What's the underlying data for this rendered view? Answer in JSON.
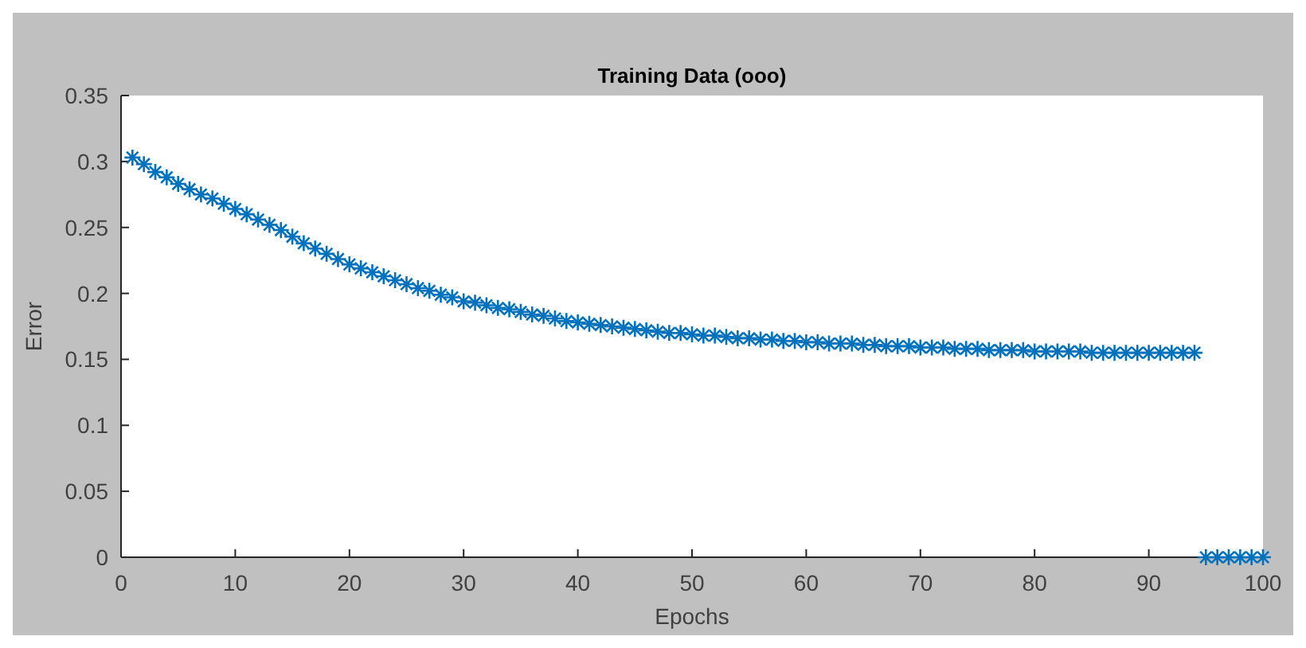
{
  "chart_data": {
    "type": "scatter",
    "title": "Training Data (ooo)",
    "xlabel": "Epochs",
    "ylabel": "Error",
    "x": [
      1,
      2,
      3,
      4,
      5,
      6,
      7,
      8,
      9,
      10,
      11,
      12,
      13,
      14,
      15,
      16,
      17,
      18,
      19,
      20,
      21,
      22,
      23,
      24,
      25,
      26,
      27,
      28,
      29,
      30,
      31,
      32,
      33,
      34,
      35,
      36,
      37,
      38,
      39,
      40,
      41,
      42,
      43,
      44,
      45,
      46,
      47,
      48,
      49,
      50,
      51,
      52,
      53,
      54,
      55,
      56,
      57,
      58,
      59,
      60,
      61,
      62,
      63,
      64,
      65,
      66,
      67,
      68,
      69,
      70,
      71,
      72,
      73,
      74,
      75,
      76,
      77,
      78,
      79,
      80,
      81,
      82,
      83,
      84,
      85,
      86,
      87,
      88,
      89,
      90,
      91,
      92,
      93,
      94,
      95,
      96,
      97,
      98,
      99,
      100
    ],
    "series": [
      {
        "color": "#0072bd",
        "values": [
          0.303,
          0.298,
          0.292,
          0.288,
          0.283,
          0.279,
          0.275,
          0.272,
          0.268,
          0.264,
          0.26,
          0.256,
          0.252,
          0.248,
          0.243,
          0.238,
          0.234,
          0.23,
          0.226,
          0.222,
          0.219,
          0.216,
          0.213,
          0.21,
          0.207,
          0.204,
          0.202,
          0.199,
          0.197,
          0.194,
          0.193,
          0.191,
          0.189,
          0.188,
          0.186,
          0.184,
          0.183,
          0.181,
          0.179,
          0.178,
          0.177,
          0.176,
          0.175,
          0.174,
          0.173,
          0.172,
          0.171,
          0.17,
          0.17,
          0.169,
          0.168,
          0.168,
          0.167,
          0.166,
          0.166,
          0.165,
          0.165,
          0.164,
          0.164,
          0.163,
          0.163,
          0.162,
          0.162,
          0.162,
          0.161,
          0.161,
          0.16,
          0.16,
          0.16,
          0.159,
          0.159,
          0.159,
          0.158,
          0.158,
          0.158,
          0.157,
          0.157,
          0.157,
          0.157,
          0.156,
          0.156,
          0.156,
          0.156,
          0.156,
          0.155,
          0.155,
          0.155,
          0.155,
          0.155,
          0.155,
          0.155,
          0.155,
          0.155,
          0.155,
          0,
          0,
          0,
          0,
          0,
          0
        ]
      }
    ],
    "xlim": [
      0,
      100
    ],
    "xticks": [
      0,
      10,
      20,
      30,
      40,
      50,
      60,
      70,
      80,
      90,
      100
    ],
    "ylim": [
      0,
      0.35
    ],
    "yticks": [
      0,
      0.05,
      0.1,
      0.15,
      0.2,
      0.25,
      0.3,
      0.35
    ],
    "marker": "cross"
  }
}
